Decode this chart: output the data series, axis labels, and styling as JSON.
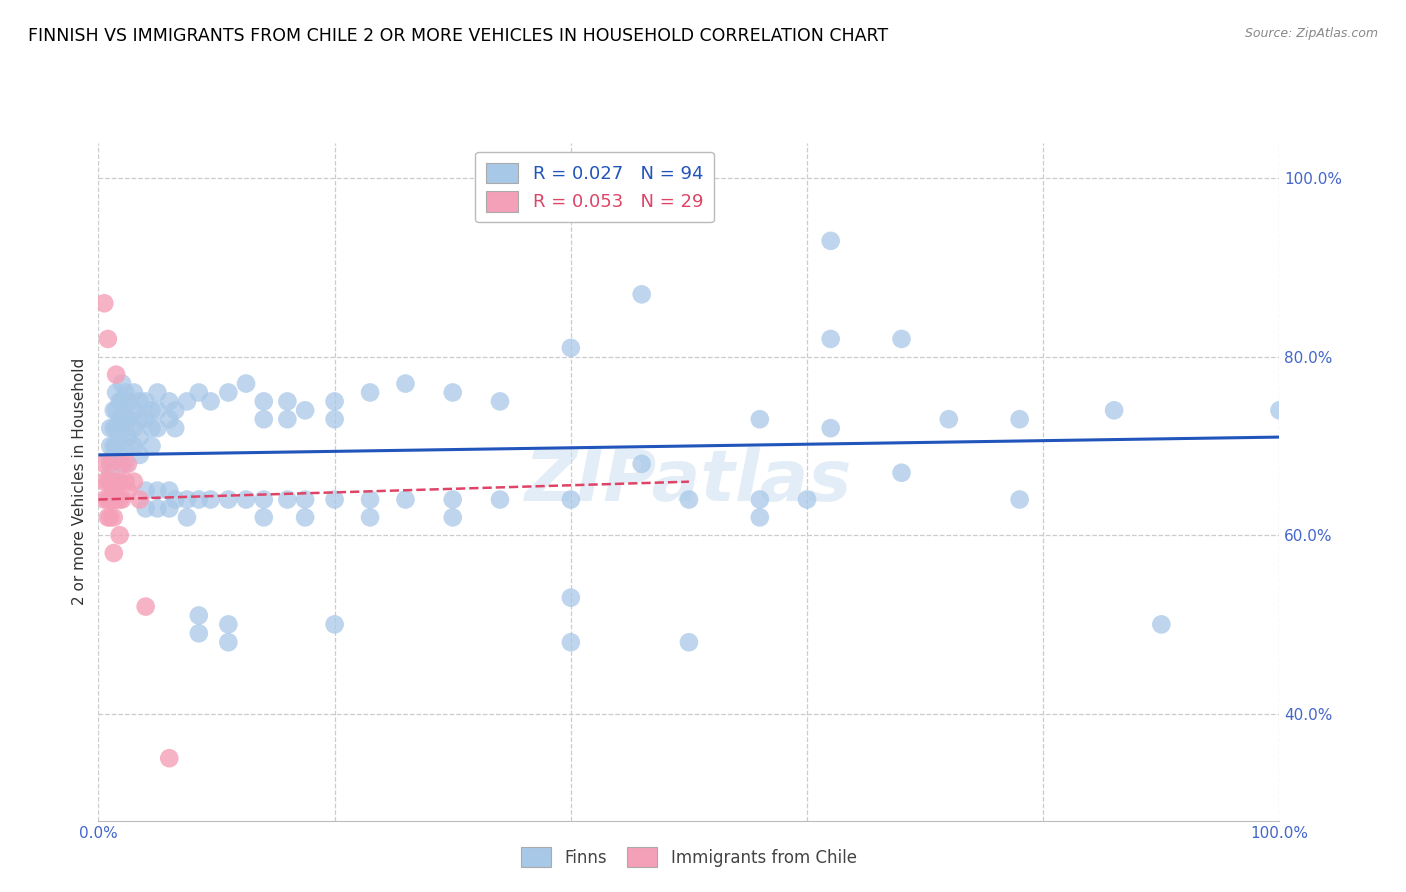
{
  "title": "FINNISH VS IMMIGRANTS FROM CHILE 2 OR MORE VEHICLES IN HOUSEHOLD CORRELATION CHART",
  "source": "Source: ZipAtlas.com",
  "ylabel": "2 or more Vehicles in Household",
  "x_range": [
    0.0,
    1.0
  ],
  "y_range": [
    0.28,
    1.04
  ],
  "y_ticks": [
    0.4,
    0.6,
    0.8,
    1.0
  ],
  "y_tick_labels": [
    "40.0%",
    "60.0%",
    "80.0%",
    "100.0%"
  ],
  "x_ticks": [
    0.0,
    1.0
  ],
  "x_tick_labels": [
    "0.0%",
    "100.0%"
  ],
  "finns_color": "#a8c8e8",
  "chile_color": "#f4a0b8",
  "finns_line_color": "#2255bb",
  "chile_line_color": "#dd4466",
  "axis_color": "#4466cc",
  "watermark": "ZIPatlas",
  "background_color": "#ffffff",
  "grid_color": "#cccccc",
  "title_color": "#000000",
  "title_fontsize": 12.5,
  "label_fontsize": 11,
  "finns_scatter": [
    [
      0.01,
      0.72
    ],
    [
      0.01,
      0.7
    ],
    [
      0.01,
      0.685
    ],
    [
      0.01,
      0.67
    ],
    [
      0.013,
      0.74
    ],
    [
      0.013,
      0.72
    ],
    [
      0.013,
      0.7
    ],
    [
      0.015,
      0.76
    ],
    [
      0.015,
      0.74
    ],
    [
      0.015,
      0.72
    ],
    [
      0.015,
      0.7
    ],
    [
      0.018,
      0.75
    ],
    [
      0.018,
      0.73
    ],
    [
      0.018,
      0.71
    ],
    [
      0.018,
      0.69
    ],
    [
      0.02,
      0.77
    ],
    [
      0.02,
      0.75
    ],
    [
      0.02,
      0.73
    ],
    [
      0.023,
      0.76
    ],
    [
      0.023,
      0.74
    ],
    [
      0.023,
      0.72
    ],
    [
      0.023,
      0.7
    ],
    [
      0.023,
      0.68
    ],
    [
      0.025,
      0.75
    ],
    [
      0.025,
      0.73
    ],
    [
      0.025,
      0.71
    ],
    [
      0.03,
      0.76
    ],
    [
      0.03,
      0.74
    ],
    [
      0.03,
      0.72
    ],
    [
      0.03,
      0.7
    ],
    [
      0.035,
      0.75
    ],
    [
      0.035,
      0.73
    ],
    [
      0.035,
      0.71
    ],
    [
      0.035,
      0.69
    ],
    [
      0.04,
      0.75
    ],
    [
      0.04,
      0.73
    ],
    [
      0.04,
      0.65
    ],
    [
      0.04,
      0.63
    ],
    [
      0.045,
      0.74
    ],
    [
      0.045,
      0.72
    ],
    [
      0.045,
      0.7
    ],
    [
      0.05,
      0.76
    ],
    [
      0.05,
      0.74
    ],
    [
      0.05,
      0.72
    ],
    [
      0.05,
      0.65
    ],
    [
      0.05,
      0.63
    ],
    [
      0.06,
      0.75
    ],
    [
      0.06,
      0.73
    ],
    [
      0.06,
      0.65
    ],
    [
      0.06,
      0.63
    ],
    [
      0.065,
      0.74
    ],
    [
      0.065,
      0.72
    ],
    [
      0.065,
      0.64
    ],
    [
      0.075,
      0.75
    ],
    [
      0.075,
      0.64
    ],
    [
      0.075,
      0.62
    ],
    [
      0.085,
      0.76
    ],
    [
      0.085,
      0.64
    ],
    [
      0.085,
      0.51
    ],
    [
      0.085,
      0.49
    ],
    [
      0.095,
      0.75
    ],
    [
      0.095,
      0.64
    ],
    [
      0.11,
      0.76
    ],
    [
      0.11,
      0.64
    ],
    [
      0.11,
      0.5
    ],
    [
      0.11,
      0.48
    ],
    [
      0.125,
      0.77
    ],
    [
      0.125,
      0.64
    ],
    [
      0.14,
      0.75
    ],
    [
      0.14,
      0.73
    ],
    [
      0.14,
      0.64
    ],
    [
      0.14,
      0.62
    ],
    [
      0.16,
      0.75
    ],
    [
      0.16,
      0.73
    ],
    [
      0.16,
      0.64
    ],
    [
      0.175,
      0.74
    ],
    [
      0.175,
      0.64
    ],
    [
      0.175,
      0.62
    ],
    [
      0.2,
      0.75
    ],
    [
      0.2,
      0.73
    ],
    [
      0.2,
      0.64
    ],
    [
      0.2,
      0.5
    ],
    [
      0.23,
      0.76
    ],
    [
      0.23,
      0.64
    ],
    [
      0.23,
      0.62
    ],
    [
      0.26,
      0.77
    ],
    [
      0.26,
      0.64
    ],
    [
      0.3,
      0.76
    ],
    [
      0.3,
      0.64
    ],
    [
      0.3,
      0.62
    ],
    [
      0.34,
      0.75
    ],
    [
      0.34,
      0.64
    ],
    [
      0.4,
      0.81
    ],
    [
      0.4,
      0.64
    ],
    [
      0.4,
      0.53
    ],
    [
      0.4,
      0.48
    ],
    [
      0.46,
      0.87
    ],
    [
      0.46,
      0.68
    ],
    [
      0.5,
      0.64
    ],
    [
      0.5,
      0.48
    ],
    [
      0.56,
      0.73
    ],
    [
      0.56,
      0.64
    ],
    [
      0.56,
      0.62
    ],
    [
      0.6,
      0.64
    ],
    [
      0.62,
      0.93
    ],
    [
      0.62,
      0.82
    ],
    [
      0.62,
      0.72
    ],
    [
      0.68,
      0.82
    ],
    [
      0.68,
      0.67
    ],
    [
      0.72,
      0.73
    ],
    [
      0.78,
      0.73
    ],
    [
      0.78,
      0.64
    ],
    [
      0.86,
      0.74
    ],
    [
      0.9,
      0.5
    ],
    [
      1.0,
      0.74
    ]
  ],
  "chile_scatter": [
    [
      0.005,
      0.86
    ],
    [
      0.005,
      0.68
    ],
    [
      0.005,
      0.66
    ],
    [
      0.005,
      0.64
    ],
    [
      0.008,
      0.82
    ],
    [
      0.008,
      0.66
    ],
    [
      0.008,
      0.64
    ],
    [
      0.008,
      0.62
    ],
    [
      0.01,
      0.68
    ],
    [
      0.01,
      0.66
    ],
    [
      0.01,
      0.64
    ],
    [
      0.01,
      0.62
    ],
    [
      0.013,
      0.66
    ],
    [
      0.013,
      0.64
    ],
    [
      0.013,
      0.62
    ],
    [
      0.013,
      0.58
    ],
    [
      0.015,
      0.78
    ],
    [
      0.015,
      0.66
    ],
    [
      0.015,
      0.64
    ],
    [
      0.018,
      0.66
    ],
    [
      0.018,
      0.64
    ],
    [
      0.018,
      0.6
    ],
    [
      0.02,
      0.68
    ],
    [
      0.02,
      0.64
    ],
    [
      0.023,
      0.66
    ],
    [
      0.025,
      0.68
    ],
    [
      0.025,
      0.65
    ],
    [
      0.03,
      0.66
    ],
    [
      0.035,
      0.64
    ],
    [
      0.04,
      0.52
    ],
    [
      0.06,
      0.35
    ]
  ],
  "finns_line_x": [
    0.0,
    1.0
  ],
  "finns_line_y": [
    0.69,
    0.71
  ],
  "chile_line_x": [
    0.0,
    0.5
  ],
  "chile_line_y": [
    0.64,
    0.66
  ]
}
